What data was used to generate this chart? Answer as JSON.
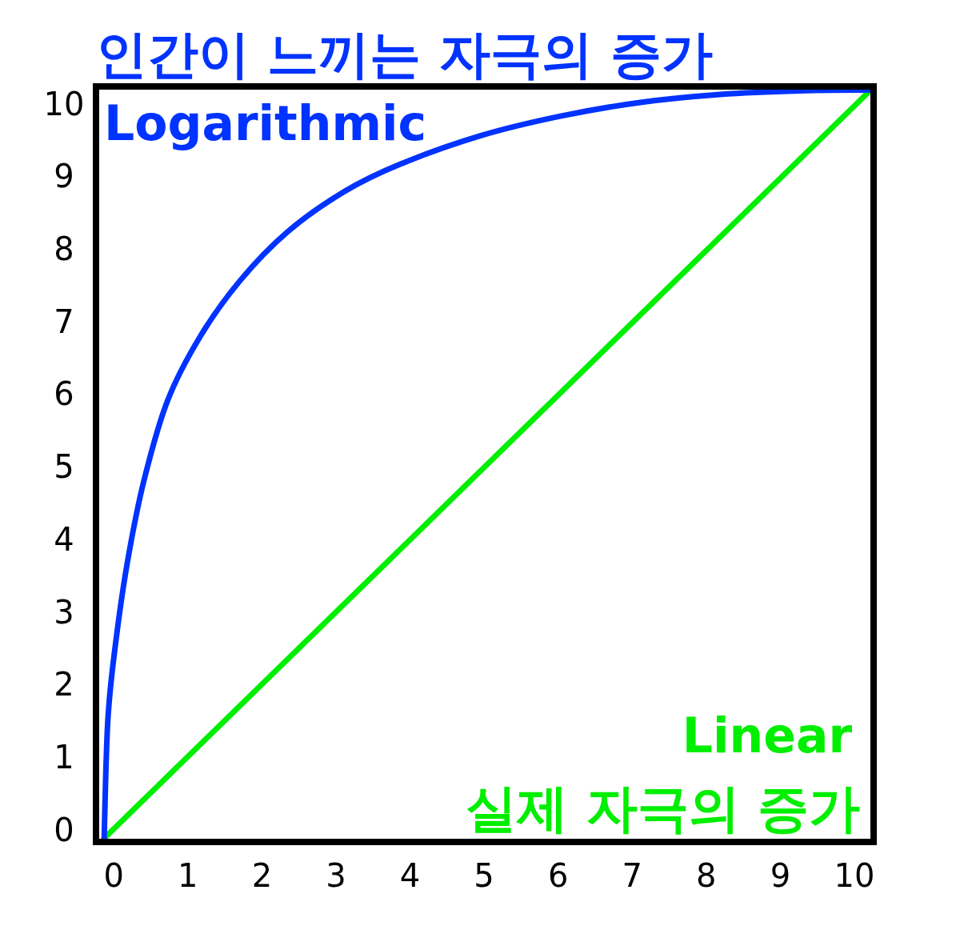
{
  "chart_data": {
    "type": "line",
    "title": "인간이 느끼는 자극의 증가",
    "annotations": [
      "실제 자극의 증가"
    ],
    "xlim": [
      -0.24,
      10.26
    ],
    "ylim": [
      -0.17,
      10.24
    ],
    "xticks": [
      0,
      1,
      2,
      3,
      4,
      5,
      6,
      7,
      8,
      9,
      10
    ],
    "yticks": [
      0,
      1,
      2,
      3,
      4,
      5,
      6,
      7,
      8,
      9,
      10
    ],
    "grid": false,
    "marker": "none",
    "line_style": "solid",
    "series": [
      {
        "name": "Logarithmic",
        "color": "#0033ff",
        "x": [
          -0.13,
          -0.08,
          0.03,
          0.19,
          0.41,
          0.73,
          1.17,
          1.71,
          2.35,
          3.11,
          3.87,
          4.95,
          6.03,
          7.11,
          8.19,
          9.27,
          10.22
        ],
        "values": [
          -0.12,
          1.51,
          2.61,
          3.72,
          4.82,
          5.92,
          6.8,
          7.57,
          8.24,
          8.79,
          9.17,
          9.56,
          9.83,
          10.02,
          10.13,
          10.18,
          10.19
        ]
      },
      {
        "name": "Linear",
        "color": "#00ee00",
        "x": [
          -0.13,
          10.22
        ],
        "values": [
          -0.12,
          10.19
        ]
      }
    ]
  }
}
